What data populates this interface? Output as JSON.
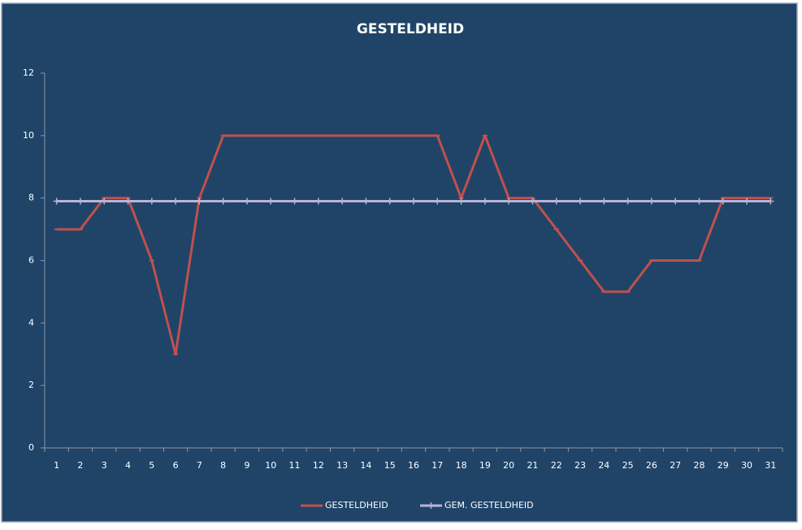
{
  "chart_data": {
    "type": "line",
    "title": "GESTELDHEID",
    "categories": [
      "1",
      "2",
      "3",
      "4",
      "5",
      "6",
      "7",
      "8",
      "9",
      "10",
      "11",
      "12",
      "13",
      "14",
      "15",
      "16",
      "17",
      "18",
      "19",
      "20",
      "21",
      "22",
      "23",
      "24",
      "25",
      "26",
      "27",
      "28",
      "29",
      "30",
      "31"
    ],
    "series": [
      {
        "name": "GESTELDHEID",
        "color": "#c0504d",
        "marker": "dash",
        "values": [
          7,
          7,
          8,
          8,
          6,
          3,
          8,
          10,
          10,
          10,
          10,
          10,
          10,
          10,
          10,
          10,
          10,
          8,
          10,
          8,
          8,
          7,
          6,
          5,
          5,
          6,
          6,
          6,
          8,
          8,
          8
        ]
      },
      {
        "name": "GEM. GESTELDHEID",
        "color": "#b8b4d8",
        "marker": "plus",
        "values": [
          7.9,
          7.9,
          7.9,
          7.9,
          7.9,
          7.9,
          7.9,
          7.9,
          7.9,
          7.9,
          7.9,
          7.9,
          7.9,
          7.9,
          7.9,
          7.9,
          7.9,
          7.9,
          7.9,
          7.9,
          7.9,
          7.9,
          7.9,
          7.9,
          7.9,
          7.9,
          7.9,
          7.9,
          7.9,
          7.9,
          7.9
        ]
      }
    ],
    "ylim": [
      0,
      12
    ],
    "yticks": [
      0,
      2,
      4,
      6,
      8,
      10,
      12
    ],
    "grid": false,
    "legend": "bottom"
  }
}
